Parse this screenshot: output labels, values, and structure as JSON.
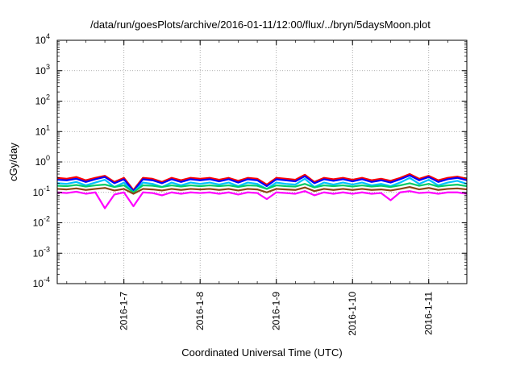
{
  "chart_data": {
    "type": "line",
    "title": "/data/run/goesPlots/archive/2016-01-11/12:00/flux/../bryn/5daysMoon.plot",
    "xlabel": "Coordinated Universal Time (UTC)",
    "ylabel": "cGy/day",
    "yscale": "log",
    "ylim": [
      0.0001,
      10000
    ],
    "xlim": [
      "2016-01-06T03:00",
      "2016-01-11T12:00"
    ],
    "grid": "dotted",
    "legend": "none",
    "y_ticks": [
      {
        "base": "10",
        "exp": "-4",
        "value": 0.0001
      },
      {
        "base": "10",
        "exp": "-3",
        "value": 0.001
      },
      {
        "base": "10",
        "exp": "-2",
        "value": 0.01
      },
      {
        "base": "10",
        "exp": "-1",
        "value": 0.1
      },
      {
        "base": "10",
        "exp": "0",
        "value": 1
      },
      {
        "base": "10",
        "exp": "1",
        "value": 10
      },
      {
        "base": "10",
        "exp": "2",
        "value": 100
      },
      {
        "base": "10",
        "exp": "3",
        "value": 1000
      },
      {
        "base": "10",
        "exp": "4",
        "value": 10000
      }
    ],
    "x_ticks": [
      {
        "label": "2016-1-7",
        "date": "2016-01-07T00:00"
      },
      {
        "label": "2016-1-8",
        "date": "2016-01-08T00:00"
      },
      {
        "label": "2016-1-9",
        "date": "2016-01-09T00:00"
      },
      {
        "label": "2016-1-10",
        "date": "2016-01-10T00:00"
      },
      {
        "label": "2016-1-11",
        "date": "2016-01-11T00:00"
      }
    ],
    "x": [
      "2016-01-06T03:00",
      "2016-01-06T06:00",
      "2016-01-06T09:00",
      "2016-01-06T12:00",
      "2016-01-06T15:00",
      "2016-01-06T18:00",
      "2016-01-06T21:00",
      "2016-01-07T00:00",
      "2016-01-07T03:00",
      "2016-01-07T06:00",
      "2016-01-07T09:00",
      "2016-01-07T12:00",
      "2016-01-07T15:00",
      "2016-01-07T18:00",
      "2016-01-07T21:00",
      "2016-01-08T00:00",
      "2016-01-08T03:00",
      "2016-01-08T06:00",
      "2016-01-08T09:00",
      "2016-01-08T12:00",
      "2016-01-08T15:00",
      "2016-01-08T18:00",
      "2016-01-08T21:00",
      "2016-01-09T00:00",
      "2016-01-09T03:00",
      "2016-01-09T06:00",
      "2016-01-09T09:00",
      "2016-01-09T12:00",
      "2016-01-09T15:00",
      "2016-01-09T18:00",
      "2016-01-09T21:00",
      "2016-01-10T00:00",
      "2016-01-10T03:00",
      "2016-01-10T06:00",
      "2016-01-10T09:00",
      "2016-01-10T12:00",
      "2016-01-10T15:00",
      "2016-01-10T18:00",
      "2016-01-10T21:00",
      "2016-01-11T00:00",
      "2016-01-11T03:00",
      "2016-01-11T06:00",
      "2016-01-11T09:00",
      "2016-01-11T12:00"
    ],
    "series": [
      {
        "color": "#ff0000",
        "values": [
          0.3,
          0.28,
          0.32,
          0.25,
          0.3,
          0.35,
          0.22,
          0.3,
          0.12,
          0.3,
          0.28,
          0.22,
          0.3,
          0.25,
          0.3,
          0.28,
          0.3,
          0.26,
          0.3,
          0.24,
          0.3,
          0.28,
          0.18,
          0.3,
          0.28,
          0.26,
          0.38,
          0.22,
          0.3,
          0.27,
          0.3,
          0.26,
          0.3,
          0.25,
          0.28,
          0.24,
          0.3,
          0.4,
          0.28,
          0.35,
          0.25,
          0.3,
          0.33,
          0.28
        ]
      },
      {
        "color": "#0000ff",
        "values": [
          0.26,
          0.25,
          0.28,
          0.22,
          0.27,
          0.32,
          0.2,
          0.27,
          0.11,
          0.27,
          0.25,
          0.2,
          0.27,
          0.22,
          0.27,
          0.25,
          0.27,
          0.23,
          0.27,
          0.21,
          0.27,
          0.25,
          0.16,
          0.27,
          0.25,
          0.23,
          0.34,
          0.2,
          0.27,
          0.24,
          0.27,
          0.23,
          0.27,
          0.22,
          0.25,
          0.21,
          0.27,
          0.36,
          0.25,
          0.32,
          0.22,
          0.27,
          0.3,
          0.25
        ]
      },
      {
        "color": "#00bfff",
        "values": [
          0.2,
          0.19,
          0.22,
          0.17,
          0.21,
          0.26,
          0.15,
          0.21,
          0.1,
          0.21,
          0.19,
          0.15,
          0.21,
          0.17,
          0.21,
          0.19,
          0.21,
          0.18,
          0.21,
          0.16,
          0.21,
          0.19,
          0.13,
          0.21,
          0.19,
          0.18,
          0.28,
          0.15,
          0.21,
          0.18,
          0.21,
          0.18,
          0.21,
          0.17,
          0.19,
          0.16,
          0.21,
          0.3,
          0.19,
          0.26,
          0.17,
          0.21,
          0.24,
          0.19
        ]
      },
      {
        "color": "#00cc66",
        "values": [
          0.165,
          0.16,
          0.175,
          0.155,
          0.17,
          0.18,
          0.15,
          0.17,
          0.1,
          0.17,
          0.165,
          0.15,
          0.17,
          0.155,
          0.17,
          0.16,
          0.17,
          0.16,
          0.17,
          0.15,
          0.17,
          0.165,
          0.13,
          0.17,
          0.16,
          0.155,
          0.19,
          0.145,
          0.17,
          0.16,
          0.17,
          0.155,
          0.17,
          0.155,
          0.165,
          0.15,
          0.17,
          0.2,
          0.165,
          0.19,
          0.155,
          0.17,
          0.18,
          0.16
        ]
      },
      {
        "color": "#8b4513",
        "values": [
          0.13,
          0.125,
          0.135,
          0.12,
          0.13,
          0.14,
          0.115,
          0.13,
          0.09,
          0.13,
          0.125,
          0.115,
          0.13,
          0.12,
          0.13,
          0.125,
          0.13,
          0.12,
          0.13,
          0.115,
          0.13,
          0.125,
          0.1,
          0.13,
          0.125,
          0.12,
          0.145,
          0.11,
          0.13,
          0.12,
          0.13,
          0.12,
          0.13,
          0.12,
          0.125,
          0.115,
          0.13,
          0.15,
          0.125,
          0.14,
          0.12,
          0.13,
          0.135,
          0.125
        ]
      },
      {
        "color": "#ff00ff",
        "values": [
          0.1,
          0.095,
          0.105,
          0.09,
          0.1,
          0.03,
          0.085,
          0.1,
          0.035,
          0.1,
          0.095,
          0.08,
          0.1,
          0.09,
          0.1,
          0.095,
          0.1,
          0.09,
          0.1,
          0.085,
          0.1,
          0.095,
          0.06,
          0.1,
          0.095,
          0.09,
          0.11,
          0.08,
          0.1,
          0.09,
          0.1,
          0.09,
          0.1,
          0.09,
          0.095,
          0.055,
          0.1,
          0.11,
          0.095,
          0.1,
          0.09,
          0.1,
          0.1,
          0.09
        ]
      }
    ]
  }
}
